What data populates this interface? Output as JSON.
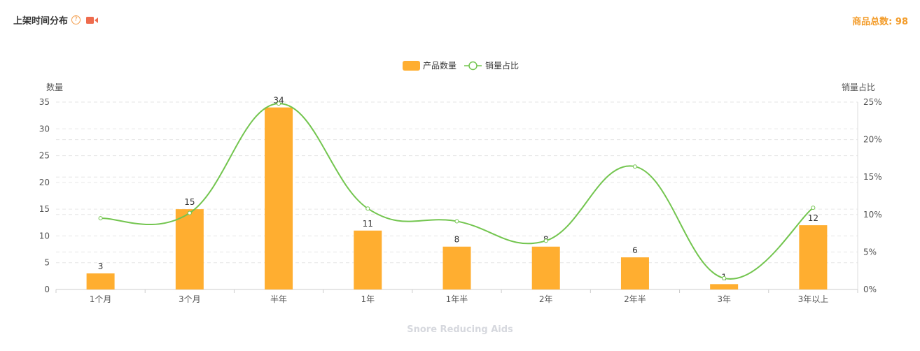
{
  "header": {
    "title": "上架时间分布",
    "help_glyph": "?",
    "total_label": "商品总数: ",
    "total_value": "98"
  },
  "watermark": "Snore Reducing Aids",
  "colors": {
    "bar": "#ffae30",
    "line": "#73c54f",
    "axis_text": "#555555",
    "grid": "#e6e6e6",
    "accent": "#f39c2a",
    "video_icon": "#ee6b4d"
  },
  "chart_data": {
    "type": "bar",
    "title": "",
    "legend_position": "top-center",
    "grid": true,
    "categories": [
      "1个月",
      "3个月",
      "半年",
      "1年",
      "1年半",
      "2年",
      "2年半",
      "3年",
      "3年以上"
    ],
    "series": [
      {
        "name": "产品数量",
        "type": "bar",
        "axis": "left",
        "values": [
          3,
          15,
          34,
          11,
          8,
          8,
          6,
          1,
          12
        ]
      },
      {
        "name": "销量占比",
        "type": "line",
        "axis": "right",
        "values": [
          9.5,
          10.2,
          24.8,
          10.8,
          9.1,
          6.5,
          16.4,
          1.5,
          10.9
        ]
      }
    ],
    "ylabel": "数量",
    "ylim": [
      0,
      35
    ],
    "yticks": [
      "0",
      "5",
      "10",
      "15",
      "20",
      "25",
      "30",
      "35"
    ],
    "y2label": "销量占比",
    "y2lim": [
      0,
      25
    ],
    "y2ticks": [
      "0%",
      "5%",
      "10%",
      "15%",
      "20%",
      "25%"
    ]
  }
}
